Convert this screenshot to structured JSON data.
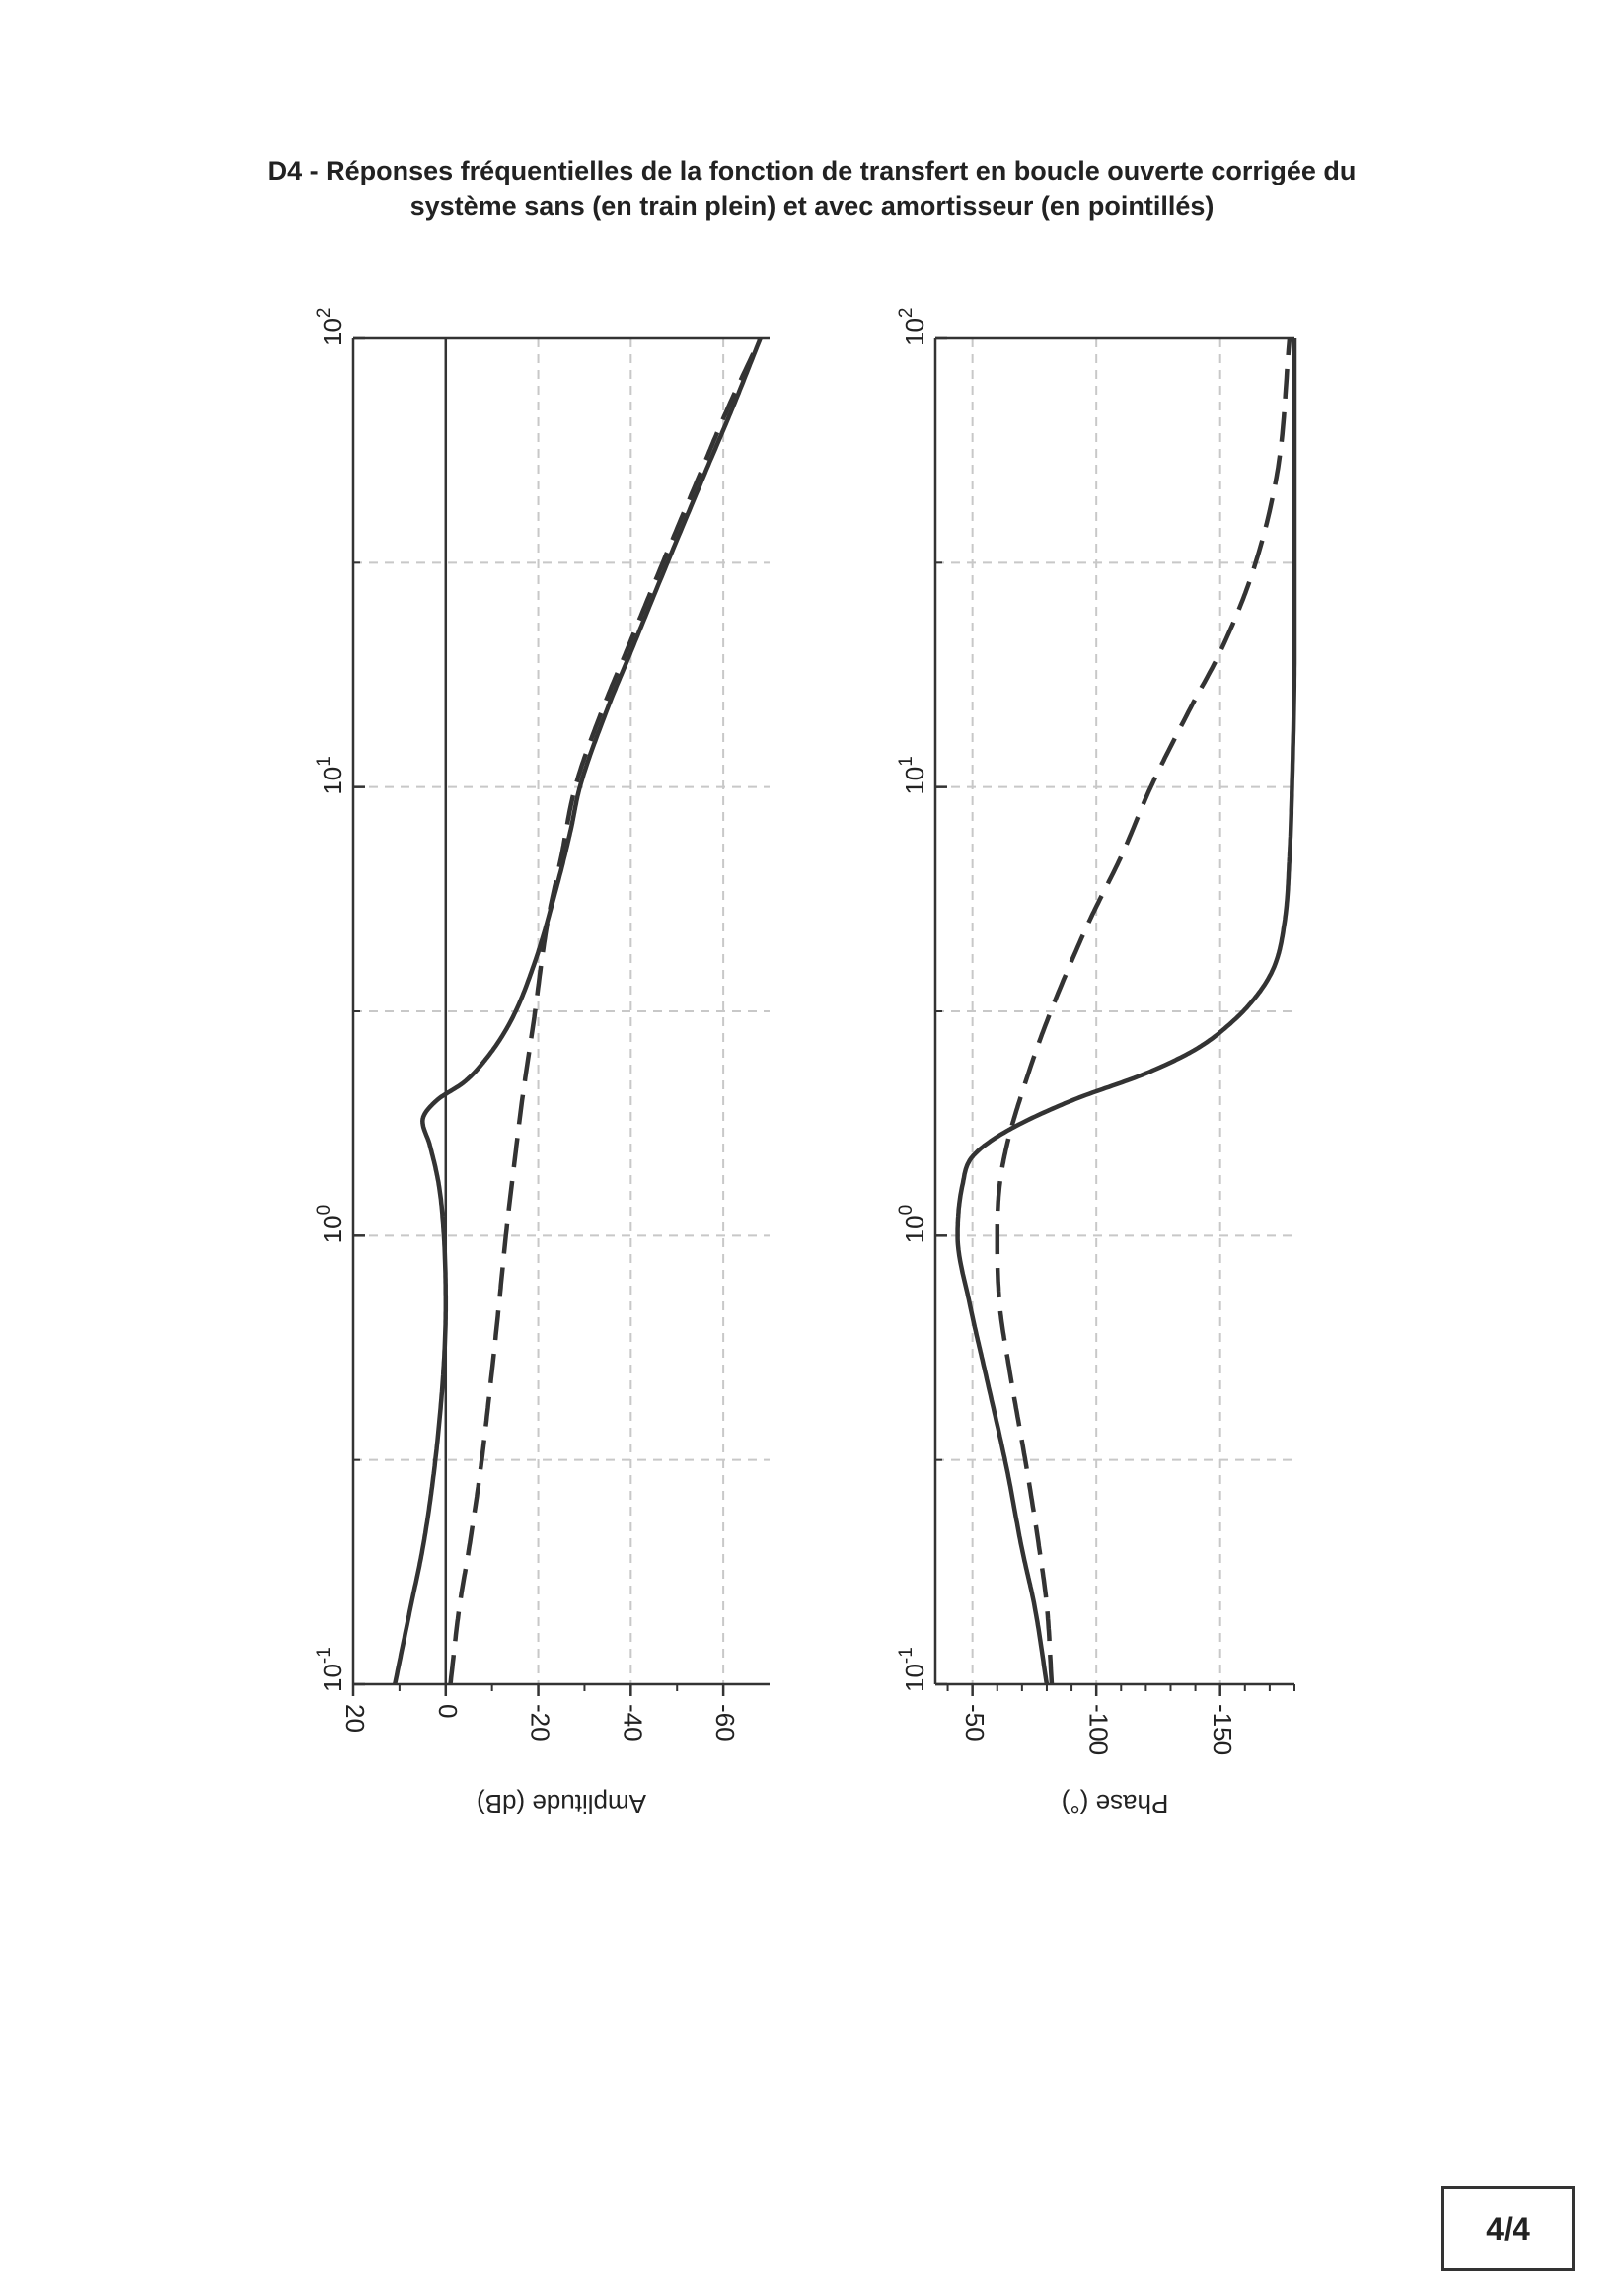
{
  "header": {
    "title_line1": "D4 - Réponses fréquentielles de la fonction de transfert en boucle ouverte corrigée du",
    "title_line2": "système sans (en train plein) et avec amortisseur (en pointillés)"
  },
  "page_number": "4/4",
  "chart_data": [
    {
      "type": "line",
      "name": "amplitude",
      "xscale": "log",
      "xlim": [
        0.1,
        100
      ],
      "x_ticks": [
        {
          "base": "10",
          "exp": "-1",
          "value": 0.1
        },
        {
          "base": "10",
          "exp": "0",
          "value": 1
        },
        {
          "base": "10",
          "exp": "1",
          "value": 10
        },
        {
          "base": "10",
          "exp": "2",
          "value": 100
        }
      ],
      "ylabel": "Amplitude (dB)",
      "ylim": [
        -70,
        20
      ],
      "y_ticks": [
        20,
        0,
        -20,
        -40,
        -60
      ],
      "y_ticklabels": [
        "20",
        "0",
        "-20",
        "-40",
        "-60"
      ],
      "grid": true,
      "series": [
        {
          "style": "solid",
          "x": [
            0.1,
            0.15,
            0.2,
            0.3,
            0.5,
            0.7,
            1.0,
            1.3,
            1.6,
            1.8,
            2.0,
            2.2,
            2.5,
            3.0,
            4.0,
            6.0,
            8.0,
            10.0,
            15,
            20,
            30,
            50,
            70,
            100
          ],
          "y": [
            11,
            7.5,
            5,
            2.5,
            0.5,
            0,
            0.4,
            1.5,
            3.5,
            5,
            2,
            -4,
            -9,
            -14,
            -19,
            -24,
            -27,
            -29,
            -35,
            -40,
            -47,
            -56,
            -62,
            -68
          ]
        },
        {
          "style": "dashed",
          "x": [
            0.1,
            0.15,
            0.2,
            0.3,
            0.5,
            0.7,
            1.0,
            1.5,
            2.0,
            3.0,
            5.0,
            7.0,
            10.0,
            15,
            20,
            30,
            50,
            70,
            100
          ],
          "y": [
            -1,
            -3,
            -5,
            -7.5,
            -10,
            -11.5,
            -13,
            -15,
            -16.5,
            -19,
            -22,
            -25,
            -28,
            -34,
            -39,
            -46,
            -55,
            -61,
            -68
          ]
        }
      ]
    },
    {
      "type": "line",
      "name": "phase",
      "xscale": "log",
      "xlim": [
        0.1,
        100
      ],
      "x_ticks": [
        {
          "base": "10",
          "exp": "-1",
          "value": 0.1
        },
        {
          "base": "10",
          "exp": "0",
          "value": 1
        },
        {
          "base": "10",
          "exp": "1",
          "value": 10
        },
        {
          "base": "10",
          "exp": "2",
          "value": 100
        }
      ],
      "ylabel": "Phase (°)",
      "ylim": [
        -180,
        -35
      ],
      "y_ticks": [
        -50,
        -100,
        -150
      ],
      "y_ticklabels": [
        "-50",
        "-100",
        "-150"
      ],
      "grid": true,
      "series": [
        {
          "style": "solid",
          "x": [
            0.1,
            0.15,
            0.2,
            0.3,
            0.5,
            0.7,
            1.0,
            1.3,
            1.5,
            1.7,
            2.0,
            2.3,
            2.6,
            3.0,
            3.5,
            4.0,
            5.0,
            7.0,
            10,
            20,
            50,
            100
          ],
          "y": [
            -80,
            -75,
            -70,
            -64,
            -55,
            -49,
            -44,
            -46,
            -50,
            -63,
            -90,
            -120,
            -140,
            -155,
            -166,
            -172,
            -176,
            -178,
            -179,
            -180,
            -180,
            -180
          ]
        },
        {
          "style": "dashed",
          "x": [
            0.1,
            0.15,
            0.2,
            0.3,
            0.5,
            0.7,
            1.0,
            1.3,
            1.6,
            2.0,
            3.0,
            5.0,
            7.0,
            10.0,
            15,
            20,
            30,
            50,
            100
          ],
          "y": [
            -82,
            -80,
            -77,
            -72,
            -65,
            -61,
            -60,
            -61,
            -64,
            -69,
            -80,
            -97,
            -110,
            -122,
            -138,
            -150,
            -163,
            -173,
            -178
          ]
        }
      ]
    }
  ]
}
